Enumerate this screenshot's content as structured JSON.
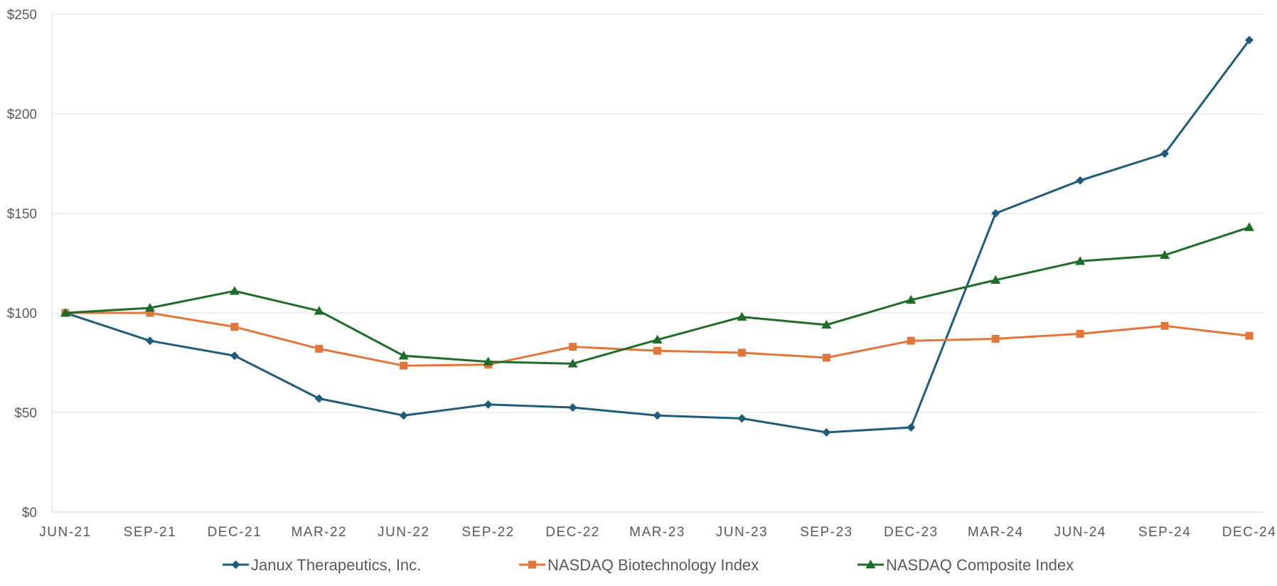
{
  "chart_data": {
    "type": "line",
    "title": "",
    "xlabel": "",
    "ylabel": "",
    "ylim": [
      0,
      250
    ],
    "ytick_values": [
      0,
      50,
      100,
      150,
      200,
      250
    ],
    "ytick_labels": [
      "$0",
      "$50",
      "$100",
      "$150",
      "$200",
      "$250"
    ],
    "categories": [
      "JUN-21",
      "SEP-21",
      "DEC-21",
      "MAR-22",
      "JUN-22",
      "SEP-22",
      "DEC-22",
      "MAR-23",
      "JUN-23",
      "SEP-23",
      "DEC-23",
      "MAR-24",
      "JUN-24",
      "SEP-24",
      "DEC-24"
    ],
    "grid": true,
    "legend_position": "bottom",
    "series": [
      {
        "name": "Janux Therapeutics, Inc.",
        "color": "#1f5c7a",
        "marker": "diamond",
        "values": [
          100,
          86,
          78.5,
          57,
          48.5,
          54,
          52.5,
          48.5,
          47,
          40,
          42.5,
          150,
          166.5,
          180,
          237
        ]
      },
      {
        "name": "NASDAQ Biotechnology Index",
        "color": "#e0763a",
        "marker": "square",
        "values": [
          100,
          100,
          93,
          82,
          73.5,
          74,
          83,
          81,
          80,
          77.5,
          86,
          87,
          89.5,
          93.5,
          88.5
        ]
      },
      {
        "name": "NASDAQ Composite Index",
        "color": "#1e6b2a",
        "marker": "triangle",
        "values": [
          100,
          102.5,
          111,
          101,
          78.5,
          75.5,
          74.5,
          86.5,
          98,
          94,
          106.5,
          116.5,
          126,
          129,
          143
        ]
      }
    ]
  }
}
